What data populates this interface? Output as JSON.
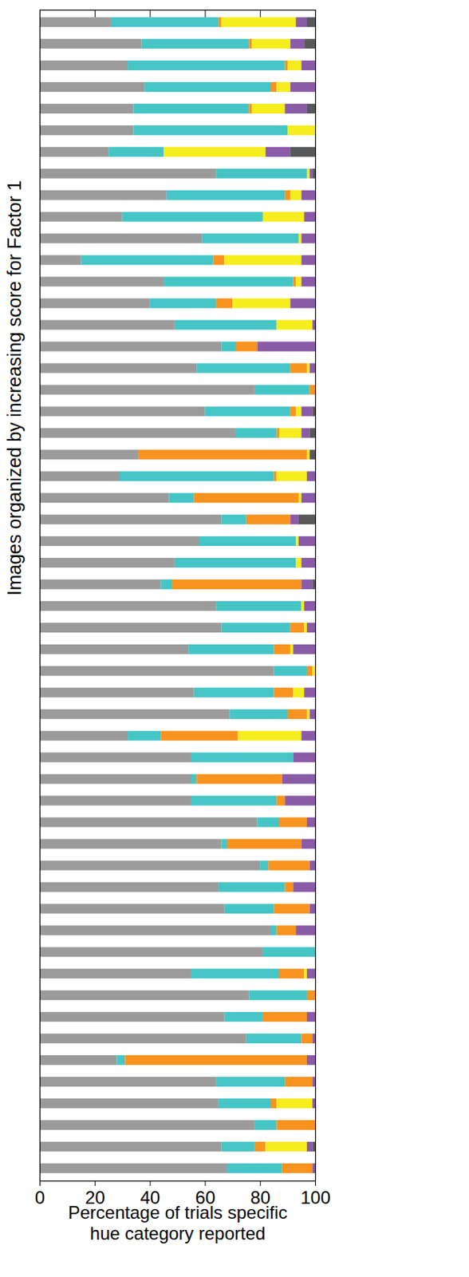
{
  "chart_data": {
    "type": "bar",
    "orientation": "horizontal",
    "stacked": true,
    "tick_labels": "x",
    "xlabel": "Percentage of trials specific hue category reported",
    "ylabel": "Images organized by increasing score for Factor 1",
    "xlim": [
      0,
      100
    ],
    "xticks": [
      0,
      20,
      40,
      60,
      80,
      100
    ],
    "categories": [
      null,
      null,
      null,
      null,
      null,
      null,
      null,
      null,
      null,
      null,
      null,
      null,
      null,
      null,
      null,
      null,
      null,
      null,
      null,
      null,
      null,
      null,
      null,
      null,
      null,
      null,
      null,
      null,
      null,
      null,
      null,
      null,
      null,
      null,
      null,
      null,
      null,
      null,
      null,
      null,
      null,
      null,
      null,
      null,
      null,
      null,
      null,
      null,
      null,
      null,
      null,
      null,
      null,
      null
    ],
    "series": [
      {
        "color": "#9b9b9b",
        "values": [
          26,
          37,
          32,
          38,
          34,
          34,
          25,
          64,
          46,
          30,
          59,
          15,
          45,
          40,
          49,
          66,
          57,
          78,
          60,
          71,
          36,
          29,
          47,
          66,
          58,
          49,
          44,
          64,
          66,
          54,
          85,
          56,
          69,
          32,
          55,
          55,
          55,
          79,
          66,
          80,
          65,
          67,
          84,
          81,
          55,
          76,
          67,
          75,
          28,
          64,
          65,
          78,
          66,
          68
        ]
      },
      {
        "color": "#45c5c6",
        "values": [
          39,
          39,
          57,
          46,
          42,
          56,
          20,
          33,
          43,
          51,
          35,
          48,
          47,
          24,
          37,
          5,
          34,
          20,
          31,
          15,
          0,
          56,
          9,
          9,
          35,
          44,
          4,
          31,
          25,
          31,
          12,
          29,
          21,
          12,
          37,
          2,
          31,
          8,
          2,
          3,
          24,
          18,
          2,
          19,
          32,
          21,
          14,
          20,
          3,
          25,
          19,
          8,
          12,
          20
        ]
      },
      {
        "color": "#f7931e",
        "values": [
          1,
          1,
          1,
          2,
          1,
          0,
          0,
          0,
          2,
          0,
          0,
          4,
          1,
          6,
          0,
          8,
          6,
          2,
          2,
          1,
          61,
          1,
          38,
          16,
          0,
          0,
          47,
          0,
          5,
          6,
          2,
          7,
          7,
          28,
          0,
          31,
          3,
          10,
          27,
          15,
          3,
          13,
          7,
          0,
          9,
          3,
          16,
          4,
          66,
          10,
          2,
          14,
          4,
          11
        ]
      },
      {
        "color": "#f5ed1d",
        "values": [
          27,
          14,
          5,
          5,
          12,
          10,
          37,
          1,
          4,
          15,
          1,
          28,
          2,
          21,
          13,
          0,
          1,
          0,
          2,
          8,
          1,
          11,
          1,
          0,
          1,
          2,
          0,
          1,
          1,
          1,
          1,
          4,
          1,
          23,
          0,
          0,
          0,
          0,
          0,
          0,
          0,
          0,
          0,
          0,
          1,
          0,
          0,
          0,
          0,
          0,
          13,
          0,
          15,
          0
        ]
      },
      {
        "color": "#8a5ba6",
        "values": [
          4,
          5,
          5,
          9,
          8,
          0,
          9,
          1,
          5,
          4,
          5,
          5,
          5,
          9,
          1,
          21,
          2,
          0,
          4,
          3,
          0,
          3,
          5,
          3,
          6,
          5,
          4,
          4,
          3,
          8,
          0,
          4,
          2,
          5,
          8,
          12,
          11,
          3,
          5,
          2,
          8,
          2,
          7,
          0,
          3,
          0,
          3,
          1,
          3,
          1,
          1,
          0,
          2,
          1
        ]
      },
      {
        "color": "#58595b",
        "values": [
          3,
          4,
          0,
          0,
          3,
          0,
          9,
          1,
          0,
          0,
          0,
          0,
          0,
          0,
          0,
          0,
          0,
          0,
          1,
          2,
          2,
          0,
          0,
          6,
          0,
          0,
          1,
          0,
          0,
          0,
          0,
          0,
          0,
          0,
          0,
          0,
          0,
          0,
          0,
          0,
          0,
          0,
          0,
          0,
          0,
          0,
          0,
          0,
          0,
          0,
          0,
          0,
          1,
          0
        ]
      }
    ]
  }
}
